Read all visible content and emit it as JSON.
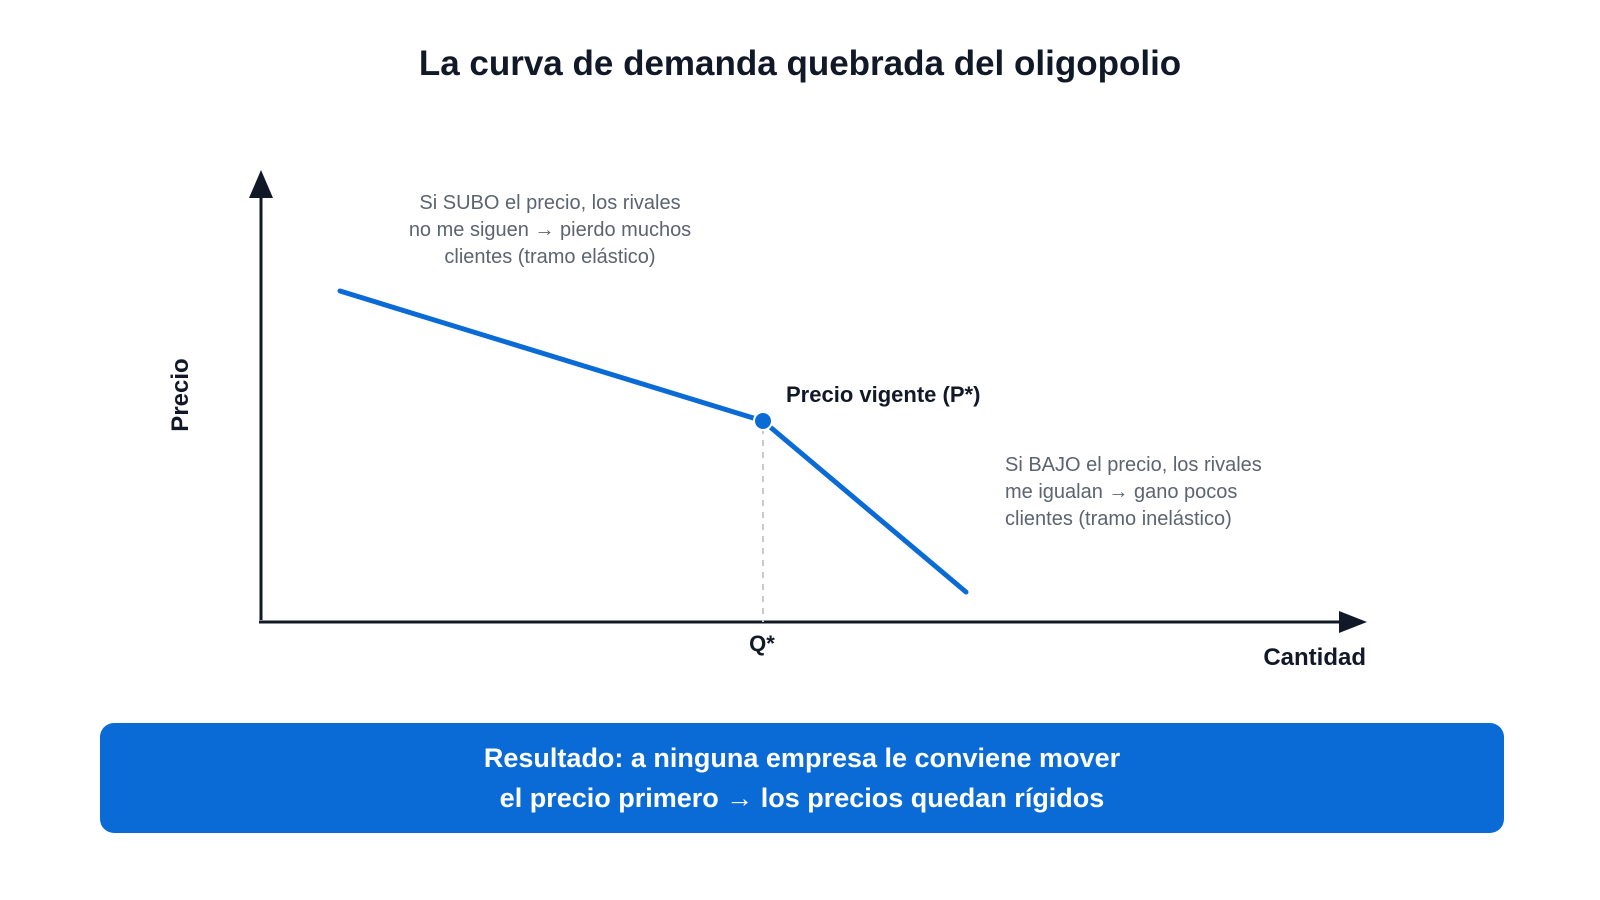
{
  "title": "La curva de demanda quebrada del oligopolio",
  "axes": {
    "x_label": "Cantidad",
    "y_label": "Precio"
  },
  "kink": {
    "label": "Precio vigente (P*)",
    "q_label": "Q*"
  },
  "annotations": {
    "upper_segment": [
      "Si SUBO el precio, los rivales",
      "no me siguen → pierdo muchos",
      "clientes (tramo elástico)"
    ],
    "lower_segment": [
      "Si BAJO el precio, los rivales",
      "me igualan → gano pocos",
      "clientes (tramo inelástico)"
    ]
  },
  "result": {
    "lines": [
      "Resultado: a ninguna empresa le conviene mover",
      "el precio primero → los precios quedan rígidos"
    ]
  },
  "colors": {
    "curve": "#0b6bd6",
    "axes": "#111827",
    "guide": "#c7cbd1",
    "result_bg": "#0b6bd6"
  }
}
